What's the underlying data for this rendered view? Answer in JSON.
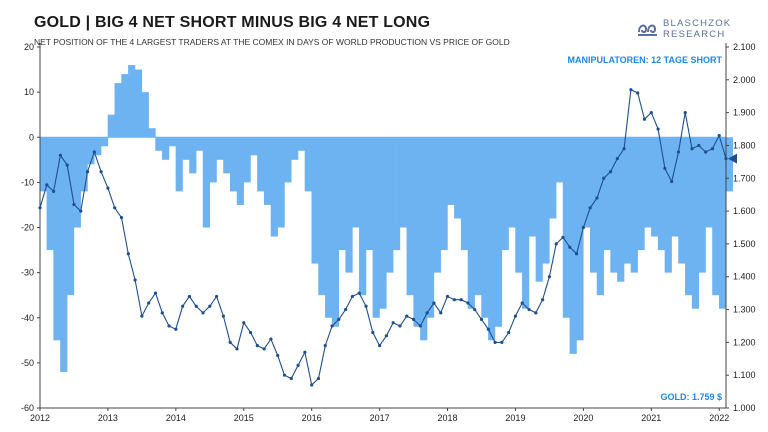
{
  "header": {
    "title": "GOLD | BIG 4 NET SHORT MINUS BIG 4 NET LONG",
    "subtitle": "NET POSITION OF THE 4 LARGEST TRADERS AT THE COMEX IN DAYS OF WORLD PRODUCTION VS PRICE OF GOLD",
    "logo_line1": "BLASCHZOK",
    "logo_line2": "RESEARCH"
  },
  "colors": {
    "area": "#6db3f2",
    "line": "#1f4f8f",
    "annotation": "#1e88e5",
    "marker": "#1f4f8f"
  },
  "chart_data": {
    "type": "area",
    "title": "GOLD | BIG 4 NET SHORT MINUS BIG 4 NET LONG",
    "xticks": [
      "2012",
      "2013",
      "2014",
      "2015",
      "2016",
      "2017",
      "2018",
      "2019",
      "2020",
      "2021",
      "2022"
    ],
    "xlim": [
      2012.0,
      2022.1
    ],
    "left_axis": {
      "ticks": [
        "20",
        "10",
        "0",
        "-10",
        "-20",
        "-30",
        "-40",
        "-50",
        "-60"
      ],
      "range": [
        -60,
        20
      ]
    },
    "right_axis": {
      "ticks": [
        "2.100",
        "2.000",
        "1.900",
        "1.800",
        "1.700",
        "1.600",
        "1.500",
        "1.400",
        "1.300",
        "1.200",
        "1.100",
        "1.000"
      ],
      "range": [
        1000,
        2100
      ]
    },
    "grid": false,
    "series": [
      {
        "name": "Big 4 net short minus big 4 net long (days of world production)",
        "axis": "left",
        "style": "area",
        "x": [
          2012.0,
          2012.1,
          2012.2,
          2012.3,
          2012.4,
          2012.5,
          2012.6,
          2012.7,
          2012.8,
          2012.9,
          2013.0,
          2013.1,
          2013.2,
          2013.3,
          2013.4,
          2013.5,
          2013.6,
          2013.7,
          2013.8,
          2013.9,
          2014.0,
          2014.1,
          2014.2,
          2014.3,
          2014.4,
          2014.5,
          2014.6,
          2014.7,
          2014.8,
          2014.9,
          2015.0,
          2015.1,
          2015.2,
          2015.3,
          2015.4,
          2015.5,
          2015.6,
          2015.7,
          2015.8,
          2015.9,
          2016.0,
          2016.1,
          2016.2,
          2016.3,
          2016.4,
          2016.5,
          2016.6,
          2016.7,
          2016.8,
          2016.9,
          2017.0,
          2017.1,
          2017.2,
          2017.3,
          2017.4,
          2017.5,
          2017.6,
          2017.7,
          2017.8,
          2017.9,
          2018.0,
          2018.1,
          2018.2,
          2018.3,
          2018.4,
          2018.5,
          2018.6,
          2018.7,
          2018.8,
          2018.9,
          2019.0,
          2019.1,
          2019.2,
          2019.3,
          2019.4,
          2019.5,
          2019.6,
          2019.7,
          2019.8,
          2019.9,
          2020.0,
          2020.1,
          2020.2,
          2020.3,
          2020.4,
          2020.5,
          2020.6,
          2020.7,
          2020.8,
          2020.9,
          2021.0,
          2021.1,
          2021.2,
          2021.3,
          2021.4,
          2021.5,
          2021.6,
          2021.7,
          2021.8,
          2021.9,
          2022.0,
          2022.1
        ],
        "y": [
          -12,
          -25,
          -45,
          -52,
          -35,
          -20,
          -12,
          -6,
          -4,
          -2,
          5,
          12,
          14,
          16,
          15,
          10,
          2,
          -3,
          -5,
          -2,
          -12,
          -5,
          -8,
          -3,
          -20,
          -10,
          -5,
          -8,
          -12,
          -15,
          -10,
          -4,
          -12,
          -15,
          -22,
          -20,
          -10,
          -5,
          -3,
          -12,
          -28,
          -35,
          -40,
          -42,
          -25,
          -30,
          -20,
          -35,
          -25,
          -40,
          -38,
          -30,
          -25,
          -20,
          -35,
          -42,
          -45,
          -40,
          -30,
          -25,
          -15,
          -18,
          -25,
          -38,
          -35,
          -40,
          -45,
          -42,
          -25,
          -20,
          -30,
          -38,
          -22,
          -32,
          -28,
          -18,
          -10,
          -40,
          -48,
          -45,
          -20,
          -30,
          -35,
          -25,
          -30,
          -32,
          -28,
          -30,
          -25,
          -20,
          -22,
          -25,
          -30,
          -22,
          -28,
          -35,
          -38,
          -30,
          -20,
          -35,
          -38,
          -12
        ]
      },
      {
        "name": "Price of gold",
        "axis": "right",
        "style": "line",
        "x": [
          2012.0,
          2012.1,
          2012.2,
          2012.3,
          2012.4,
          2012.5,
          2012.6,
          2012.7,
          2012.8,
          2012.9,
          2013.0,
          2013.1,
          2013.2,
          2013.3,
          2013.4,
          2013.5,
          2013.6,
          2013.7,
          2013.8,
          2013.9,
          2014.0,
          2014.1,
          2014.2,
          2014.3,
          2014.4,
          2014.5,
          2014.6,
          2014.7,
          2014.8,
          2014.9,
          2015.0,
          2015.1,
          2015.2,
          2015.3,
          2015.4,
          2015.5,
          2015.6,
          2015.7,
          2015.8,
          2015.9,
          2016.0,
          2016.1,
          2016.2,
          2016.3,
          2016.4,
          2016.5,
          2016.6,
          2016.7,
          2016.8,
          2016.9,
          2017.0,
          2017.1,
          2017.2,
          2017.3,
          2017.4,
          2017.5,
          2017.6,
          2017.7,
          2017.8,
          2017.9,
          2018.0,
          2018.1,
          2018.2,
          2018.3,
          2018.4,
          2018.5,
          2018.6,
          2018.7,
          2018.8,
          2018.9,
          2019.0,
          2019.1,
          2019.2,
          2019.3,
          2019.4,
          2019.5,
          2019.6,
          2019.7,
          2019.8,
          2019.9,
          2020.0,
          2020.1,
          2020.2,
          2020.3,
          2020.4,
          2020.5,
          2020.6,
          2020.7,
          2020.8,
          2020.9,
          2021.0,
          2021.1,
          2021.2,
          2021.3,
          2021.4,
          2021.5,
          2021.6,
          2021.7,
          2021.8,
          2021.9,
          2022.0,
          2022.1
        ],
        "y": [
          1610,
          1680,
          1660,
          1770,
          1740,
          1620,
          1600,
          1720,
          1780,
          1720,
          1670,
          1610,
          1580,
          1470,
          1390,
          1280,
          1320,
          1350,
          1290,
          1250,
          1240,
          1310,
          1340,
          1310,
          1290,
          1310,
          1340,
          1280,
          1200,
          1180,
          1260,
          1230,
          1190,
          1180,
          1210,
          1160,
          1100,
          1090,
          1130,
          1170,
          1070,
          1090,
          1190,
          1250,
          1270,
          1300,
          1340,
          1350,
          1310,
          1230,
          1190,
          1220,
          1260,
          1250,
          1280,
          1270,
          1250,
          1290,
          1320,
          1290,
          1340,
          1330,
          1330,
          1320,
          1300,
          1270,
          1240,
          1200,
          1200,
          1230,
          1280,
          1320,
          1300,
          1290,
          1330,
          1400,
          1500,
          1520,
          1490,
          1470,
          1550,
          1610,
          1640,
          1700,
          1720,
          1760,
          1790,
          1970,
          1960,
          1880,
          1900,
          1850,
          1730,
          1690,
          1780,
          1900,
          1790,
          1800,
          1780,
          1790,
          1830,
          1760
        ]
      }
    ],
    "annotations": [
      "MANIPULATOREN: 12 TAGE SHORT",
      "GOLD: 1.759 $"
    ]
  }
}
